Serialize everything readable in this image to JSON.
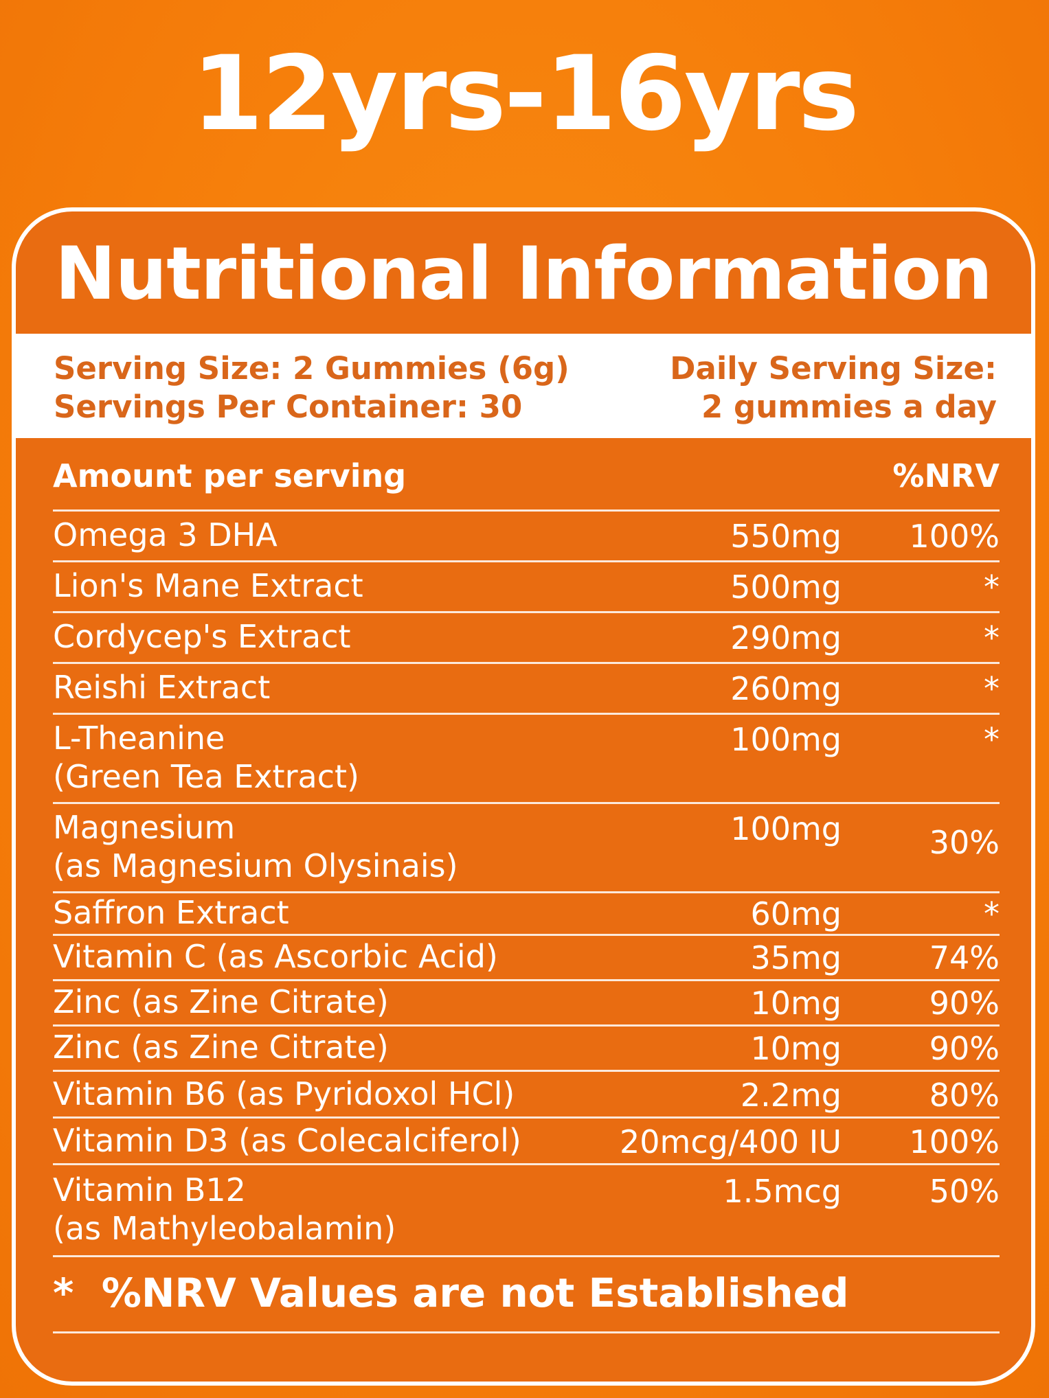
{
  "age_range": "12yrs-16yrs",
  "panel_title": "Nutritional Information",
  "serving": {
    "size": "Serving Size: 2 Gummies (6g)",
    "per_container": "Servings Per Container: 30",
    "daily_label": "Daily Serving Size:",
    "daily_value": "2 gummies a day"
  },
  "table": {
    "header_left": "Amount per serving",
    "header_right": "%NRV",
    "rows": [
      {
        "name": "Omega 3 DHA",
        "name2": "",
        "amount": "550mg",
        "nrv": "100%"
      },
      {
        "name": "Lion's Mane Extract",
        "name2": "",
        "amount": "500mg",
        "nrv": "*"
      },
      {
        "name": "Cordycep's Extract",
        "name2": "",
        "amount": "290mg",
        "nrv": "*"
      },
      {
        "name": "Reishi Extract",
        "name2": "",
        "amount": "260mg",
        "nrv": "*"
      },
      {
        "name": "L-Theanine",
        "name2": "(Green Tea Extract)",
        "amount": "100mg",
        "nrv": "*"
      },
      {
        "name": "Magnesium",
        "name2": "(as Magnesium Olysinais)",
        "amount": "100mg",
        "nrv": "30%"
      },
      {
        "name": "Saffron Extract",
        "name2": "",
        "amount": "60mg",
        "nrv": "*"
      },
      {
        "name": "Vitamin C (as Ascorbic Acid)",
        "name2": "",
        "amount": "35mg",
        "nrv": "74%"
      },
      {
        "name": "Zinc (as Zine Citrate)",
        "name2": "",
        "amount": "10mg",
        "nrv": "90%"
      },
      {
        "name": "Zinc (as Zine Citrate)",
        "name2": "",
        "amount": "10mg",
        "nrv": "90%"
      },
      {
        "name": "Vitamin B6 (as Pyridoxol HCl)",
        "name2": "",
        "amount": "2.2mg",
        "nrv": "80%"
      },
      {
        "name": "Vitamin D3 (as Colecalciferol)",
        "name2": "",
        "amount": "20mcg/400 IU",
        "nrv": "100%"
      },
      {
        "name": "Vitamin B12",
        "name2": "(as Mathyleobalamin)",
        "amount": "1.5mcg",
        "nrv": "50%"
      }
    ],
    "footnote": "*  %NRV Values are not Established"
  }
}
